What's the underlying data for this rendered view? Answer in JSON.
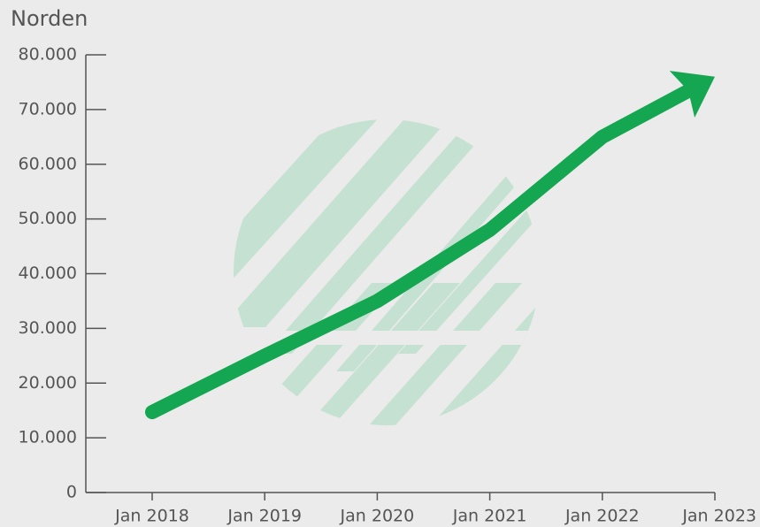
{
  "chart_data": {
    "type": "line",
    "title": "Norden",
    "categories": [
      "Jan 2018",
      "Jan 2019",
      "Jan 2020",
      "Jan 2021",
      "Jan 2022",
      "Jan 2023"
    ],
    "values": [
      14700,
      25000,
      35000,
      48000,
      65000,
      76000
    ],
    "color": "#14a651",
    "ylim": [
      0,
      80000
    ],
    "yticks": [
      0,
      {
        "value": 10000,
        "label": "10.000"
      },
      {
        "value": 20000,
        "label": "20.000"
      },
      {
        "value": 30000,
        "label": "30.000"
      },
      {
        "value": 40000,
        "label": "40.000"
      },
      {
        "value": 50000,
        "label": "50.000"
      },
      {
        "value": 60000,
        "label": "60.000"
      },
      {
        "value": 70000,
        "label": "70.000"
      },
      {
        "value": 80000,
        "label": "80.000"
      }
    ]
  }
}
